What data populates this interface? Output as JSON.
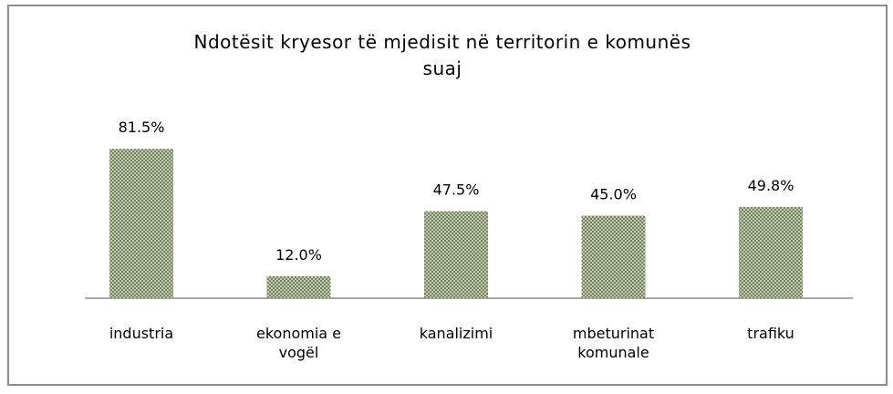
{
  "chart_data": {
    "type": "bar",
    "title": "Ndotësit kryesor të mjedisit në territorin e komunës suaj",
    "categories": [
      "industria",
      "ekonomia e vogël",
      "kanalizimi",
      "mbeturinat komunale",
      "trafiku"
    ],
    "values": [
      81.5,
      12.0,
      47.5,
      45.0,
      49.8
    ],
    "value_labels": [
      "81.5%",
      "12.0%",
      "47.5%",
      "45.0%",
      "49.8%"
    ],
    "color": "#6f7f55"
  }
}
